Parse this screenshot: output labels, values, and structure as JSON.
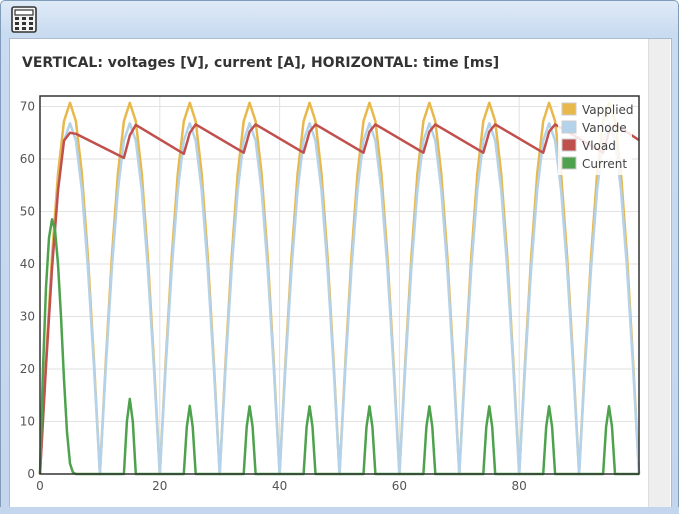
{
  "window": {
    "app_icon": "calculator-icon"
  },
  "chart_heading": "VERTICAL: voltages [V], current [A], HORIZONTAL: time [ms]",
  "chart_data": {
    "type": "line",
    "title": "VERTICAL: voltages [V], current [A], HORIZONTAL: time [ms]",
    "xlabel": "",
    "ylabel": "",
    "xlim": [
      0,
      100
    ],
    "ylim": [
      0,
      72
    ],
    "x_ticks": [
      0,
      20,
      40,
      60,
      80
    ],
    "y_ticks": [
      0,
      10,
      20,
      30,
      40,
      50,
      60,
      70
    ],
    "grid": true,
    "legend_position": "top-right",
    "series": [
      {
        "name": "Vapplied",
        "color": "#e8b84b",
        "description_values": "full-wave rectified sine, period 10 ms, peak 70.7",
        "x": [
          0,
          1,
          2,
          3,
          4,
          5,
          6,
          7,
          8,
          9,
          10,
          11,
          12,
          13,
          14,
          15,
          16,
          17,
          18,
          19,
          20,
          21,
          22,
          23,
          24,
          25,
          26,
          27,
          28,
          29,
          30,
          31,
          32,
          33,
          34,
          35,
          36,
          37,
          38,
          39,
          40,
          41,
          42,
          43,
          44,
          45,
          46,
          47,
          48,
          49,
          50,
          51,
          52,
          53,
          54,
          55,
          56,
          57,
          58,
          59,
          60,
          61,
          62,
          63,
          64,
          65,
          66,
          67,
          68,
          69,
          70,
          71,
          72,
          73,
          74,
          75,
          76,
          77,
          78,
          79,
          80,
          81,
          82,
          83,
          84,
          85,
          86,
          87,
          88,
          89,
          90,
          91,
          92,
          93,
          94,
          95,
          96,
          97,
          98,
          99,
          100
        ],
        "y": [
          0,
          21.8,
          41.5,
          57.2,
          67.2,
          70.7,
          67.2,
          57.2,
          41.5,
          21.8,
          0,
          21.8,
          41.5,
          57.2,
          67.2,
          70.7,
          67.2,
          57.2,
          41.5,
          21.8,
          0,
          21.8,
          41.5,
          57.2,
          67.2,
          70.7,
          67.2,
          57.2,
          41.5,
          21.8,
          0,
          21.8,
          41.5,
          57.2,
          67.2,
          70.7,
          67.2,
          57.2,
          41.5,
          21.8,
          0,
          21.8,
          41.5,
          57.2,
          67.2,
          70.7,
          67.2,
          57.2,
          41.5,
          21.8,
          0,
          21.8,
          41.5,
          57.2,
          67.2,
          70.7,
          67.2,
          57.2,
          41.5,
          21.8,
          0,
          21.8,
          41.5,
          57.2,
          67.2,
          70.7,
          67.2,
          57.2,
          41.5,
          21.8,
          0,
          21.8,
          41.5,
          57.2,
          67.2,
          70.7,
          67.2,
          57.2,
          41.5,
          21.8,
          0,
          21.8,
          41.5,
          57.2,
          67.2,
          70.7,
          67.2,
          57.2,
          41.5,
          21.8,
          0,
          21.8,
          41.5,
          57.2,
          67.2,
          70.7,
          67.2,
          57.2,
          41.5,
          21.8,
          0
        ]
      },
      {
        "name": "Vanode",
        "color": "#b4d2ea",
        "x": [
          0,
          1,
          2,
          3,
          4,
          5,
          6,
          7,
          8,
          9,
          10,
          11,
          12,
          13,
          14,
          15,
          16,
          17,
          18,
          19,
          20,
          21,
          22,
          23,
          24,
          25,
          26,
          27,
          28,
          29,
          30,
          31,
          32,
          33,
          34,
          35,
          36,
          37,
          38,
          39,
          40,
          41,
          42,
          43,
          44,
          45,
          46,
          47,
          48,
          49,
          50,
          51,
          52,
          53,
          54,
          55,
          56,
          57,
          58,
          59,
          60,
          61,
          62,
          63,
          64,
          65,
          66,
          67,
          68,
          69,
          70,
          71,
          72,
          73,
          74,
          75,
          76,
          77,
          78,
          79,
          80,
          81,
          82,
          83,
          84,
          85,
          86,
          87,
          88,
          89,
          90,
          91,
          92,
          93,
          94,
          95,
          96,
          97,
          98,
          99,
          100
        ],
        "y": [
          0,
          20.6,
          39.2,
          54.0,
          63.5,
          66.8,
          63.5,
          54.0,
          39.2,
          20.6,
          0,
          20.6,
          39.2,
          54.0,
          63.5,
          66.8,
          63.5,
          54.0,
          39.2,
          20.6,
          0,
          20.6,
          39.2,
          54.0,
          63.5,
          66.8,
          63.5,
          54.0,
          39.2,
          20.6,
          0,
          20.6,
          39.2,
          54.0,
          63.5,
          66.8,
          63.5,
          54.0,
          39.2,
          20.6,
          0,
          20.6,
          39.2,
          54.0,
          63.5,
          66.8,
          63.5,
          54.0,
          39.2,
          20.6,
          0,
          20.6,
          39.2,
          54.0,
          63.5,
          66.8,
          63.5,
          54.0,
          39.2,
          20.6,
          0,
          20.6,
          39.2,
          54.0,
          63.5,
          66.8,
          63.5,
          54.0,
          39.2,
          20.6,
          0,
          20.6,
          39.2,
          54.0,
          63.5,
          66.8,
          63.5,
          54.0,
          39.2,
          20.6,
          0,
          20.6,
          39.2,
          54.0,
          63.5,
          66.8,
          63.5,
          54.0,
          39.2,
          20.6,
          0,
          20.6,
          39.2,
          54.0,
          63.5,
          66.8,
          63.5,
          54.0,
          39.2,
          20.6,
          0
        ]
      },
      {
        "name": "Vload",
        "color": "#c0504d",
        "x": [
          0,
          1,
          2,
          3,
          4,
          5,
          6,
          14,
          15,
          16,
          24,
          25,
          26,
          34,
          35,
          36,
          44,
          45,
          46,
          54,
          55,
          56,
          64,
          65,
          66,
          74,
          75,
          76,
          84,
          85,
          86,
          94,
          95,
          96,
          100
        ],
        "y": [
          0,
          20.6,
          39.2,
          54.0,
          63.5,
          65.0,
          64.8,
          60.2,
          64.5,
          66.5,
          61.0,
          65.0,
          66.6,
          61.2,
          65.2,
          66.6,
          61.2,
          65.2,
          66.6,
          61.2,
          65.2,
          66.6,
          61.2,
          65.2,
          66.6,
          61.2,
          65.2,
          66.6,
          61.2,
          65.2,
          66.6,
          61.2,
          65.2,
          66.6,
          63.6
        ]
      },
      {
        "name": "Current",
        "color": "#4ea24e",
        "x": [
          0,
          0.5,
          1,
          1.5,
          2,
          2.5,
          3,
          3.5,
          4,
          4.5,
          5,
          5.5,
          6,
          14,
          14.5,
          15,
          15.5,
          16,
          24,
          24.5,
          25,
          25.5,
          26,
          34,
          34.5,
          35,
          35.5,
          36,
          44,
          44.5,
          45,
          45.5,
          46,
          54,
          54.5,
          55,
          55.5,
          56,
          64,
          64.5,
          65,
          65.5,
          66,
          74,
          74.5,
          75,
          75.5,
          76,
          84,
          84.5,
          85,
          85.5,
          86,
          94,
          94.5,
          95,
          95.5,
          96,
          100
        ],
        "y": [
          0,
          20.0,
          35.5,
          45.0,
          48.5,
          46.5,
          40.0,
          30.0,
          18.0,
          8.0,
          2.0,
          0.3,
          0,
          0,
          10.0,
          14.3,
          10.0,
          0,
          0,
          9.0,
          13.0,
          9.0,
          0,
          0,
          9.0,
          12.9,
          9.0,
          0,
          0,
          9.0,
          12.9,
          9.0,
          0,
          0,
          9.0,
          12.9,
          9.0,
          0,
          0,
          9.0,
          12.9,
          9.0,
          0,
          0,
          9.0,
          12.9,
          9.0,
          0,
          0,
          9.0,
          12.9,
          9.0,
          0,
          0,
          9.0,
          12.9,
          9.0,
          0,
          0
        ]
      }
    ]
  }
}
